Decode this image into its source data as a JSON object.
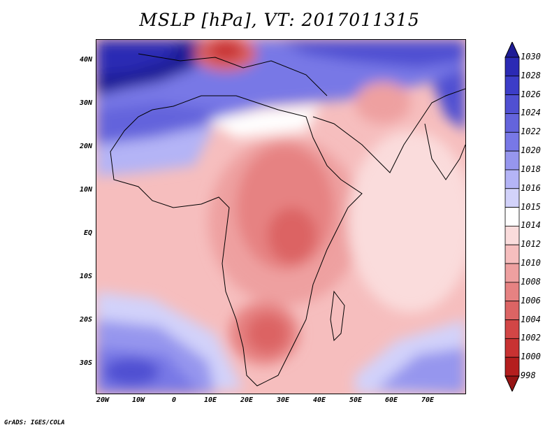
{
  "title": "MSLP [hPa], VT: 2017011315",
  "footer": "GrADS: IGES/COLA",
  "map": {
    "lat_labels": [
      "40N",
      "30N",
      "20N",
      "10N",
      "EQ",
      "10S",
      "20S",
      "30S"
    ],
    "lon_labels": [
      "20W",
      "10W",
      "0",
      "10E",
      "20E",
      "30E",
      "40E",
      "50E",
      "60E",
      "70E"
    ]
  },
  "legend": {
    "labels": [
      "1030",
      "1028",
      "1026",
      "1024",
      "1022",
      "1020",
      "1018",
      "1016",
      "1015",
      "1014",
      "1012",
      "1010",
      "1008",
      "1006",
      "1004",
      "1002",
      "1000",
      "998"
    ],
    "colors": [
      "#1e1c96",
      "#2b2ab4",
      "#3c3dc8",
      "#5050d2",
      "#6464dc",
      "#7878e6",
      "#9696ee",
      "#b4b4f6",
      "#d2d2fa",
      "#ffffff",
      "#fadcdc",
      "#f6bebe",
      "#eea0a0",
      "#e68282",
      "#dc6464",
      "#d24646",
      "#c83232",
      "#b41e1e",
      "#961414"
    ]
  }
}
